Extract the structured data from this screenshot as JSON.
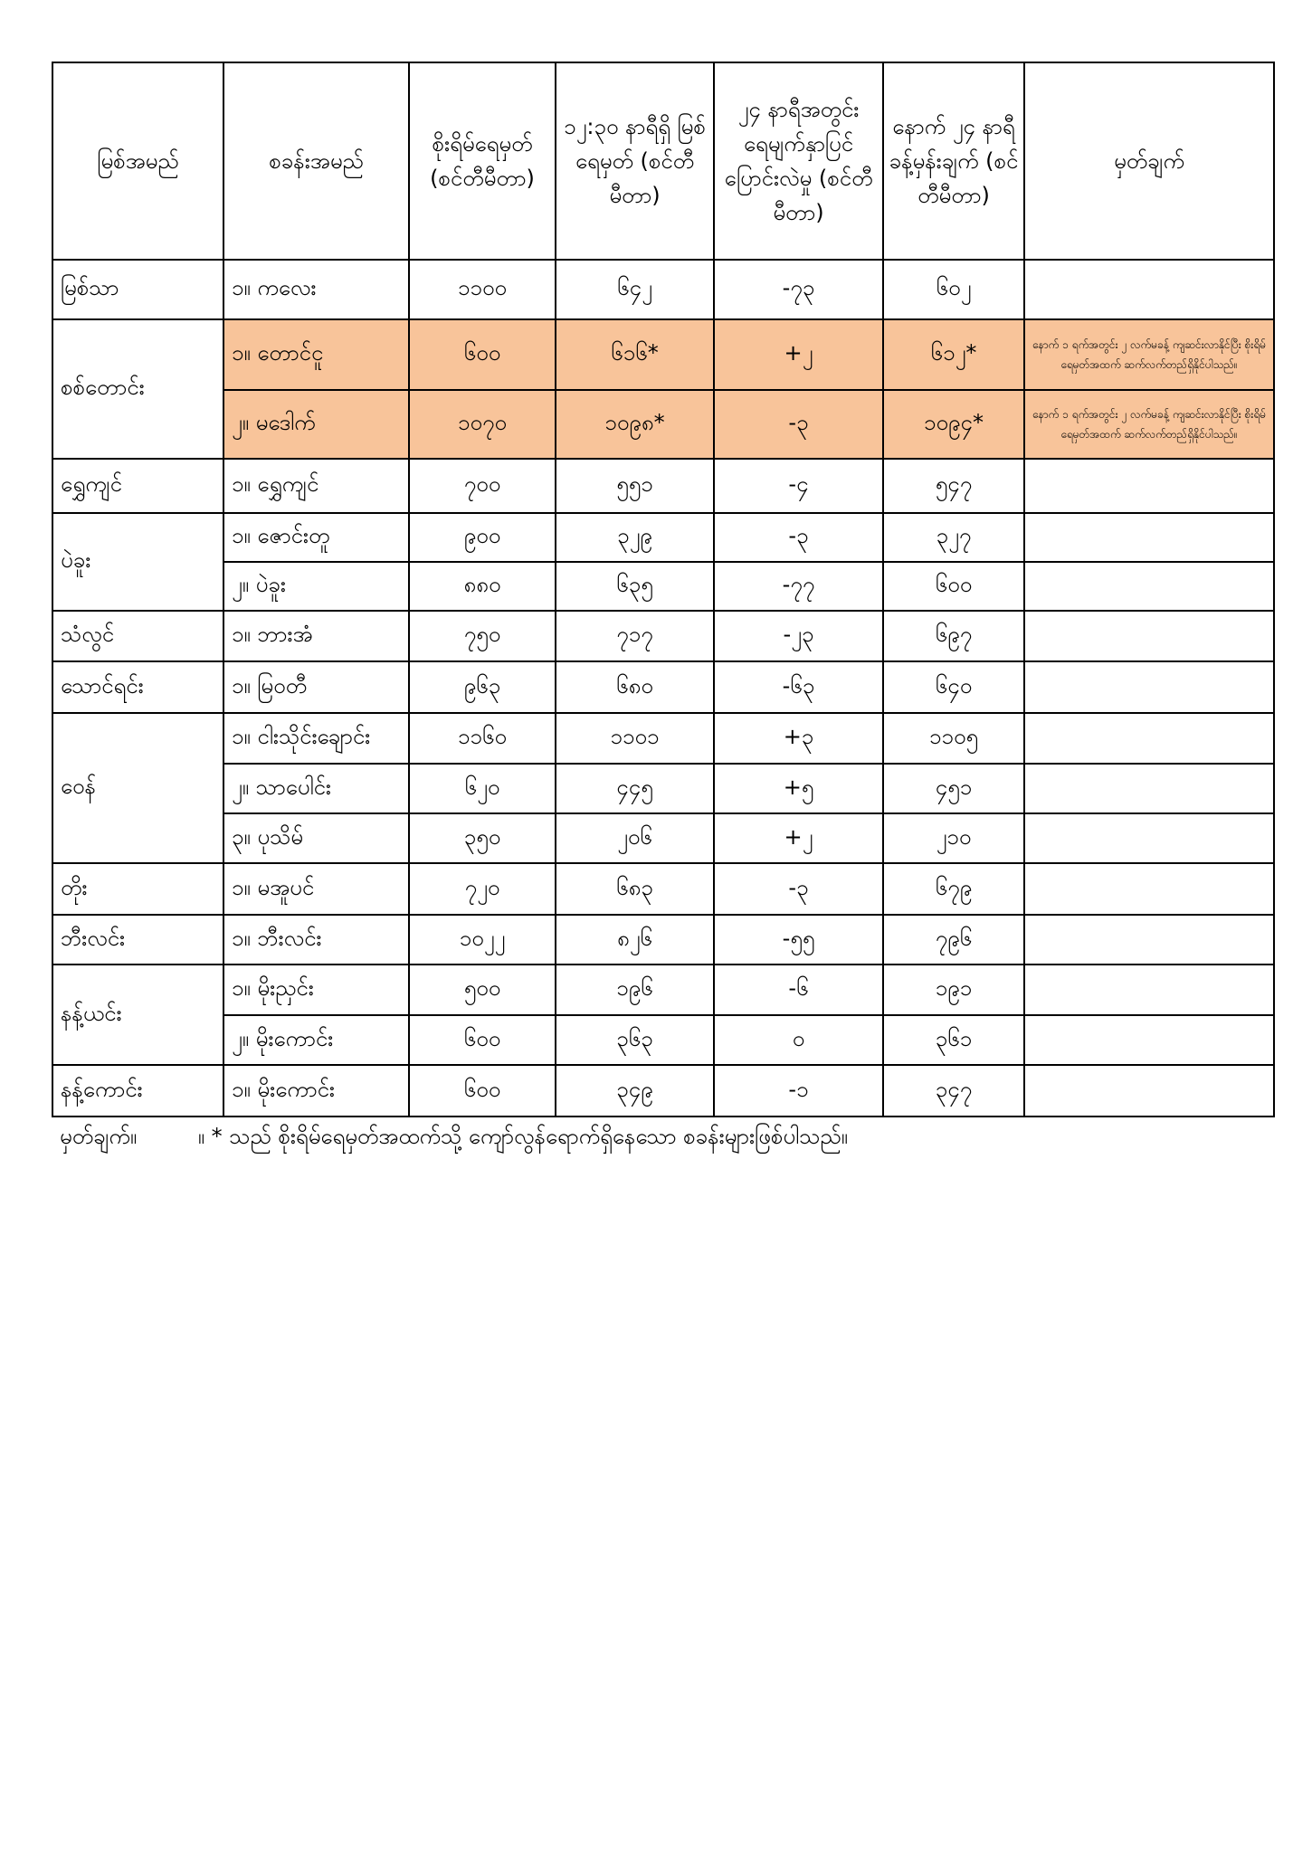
{
  "colors": {
    "highlight": "#f8c49a",
    "border": "#000000"
  },
  "headers": [
    "မြစ်အမည်",
    "စခန်းအမည်",
    "စိုးရိမ်ရေမှတ် (စင်တီမီတာ)",
    "၁၂:၃၀ နာရီရှိ မြစ်ရေမှတ် (စင်တီမီတာ)",
    "၂၄ နာရီအတွင်း ရေမျက်နှာပြင် ပြောင်းလဲမှု (စင်တီမီတာ)",
    "နောက် ၂၄ နာရီ ခန့်မှန်းချက် (စင်တီမီတာ)",
    "မှတ်ချက်"
  ],
  "rivers": [
    "မြစ်သာ",
    "စစ်တောင်း",
    "ရွှေကျင်",
    "ပဲခူး",
    "သံလွင်",
    "သောင်ရင်း",
    "ဝေန်",
    "တိုး",
    "ဘီးလင်း",
    "နန့်ယင်း",
    "နန့်ကောင်း"
  ],
  "remark_text": "နောက် ၁ ရက်အတွင်း ၂ လက်မခန့် ကျဆင်းလာနိုင်ပြီး စိုးရိမ်ရေမှတ်အထက် ဆက်လက်တည်ရှိနိုင်ပါသည်။",
  "rows": [
    {
      "station": "၁။ ကလေး",
      "danger": "၁၁၀၀",
      "level": "၆၄၂",
      "change": "-၇၃",
      "forecast": "၆၀၂"
    },
    {
      "station": "၁။ တောင်ငူ",
      "danger": "၆၀၀",
      "level": "၆၁၆*",
      "change": "+၂",
      "forecast": "၆၁၂*"
    },
    {
      "station": "၂။ မဒေါက်",
      "danger": "၁၀၇၀",
      "level": "၁၀၉၈*",
      "change": "-၃",
      "forecast": "၁၀၉၄*"
    },
    {
      "station": "၁။ ရွှေကျင်",
      "danger": "၇၀၀",
      "level": "၅၅၁",
      "change": "-၄",
      "forecast": "၅၄၇"
    },
    {
      "station": "၁။ ဇောင်းတူ",
      "danger": "၉၀၀",
      "level": "၃၂၉",
      "change": "-၃",
      "forecast": "၃၂၇"
    },
    {
      "station": "၂။ ပဲခူး",
      "danger": "၈၈၀",
      "level": "၆၃၅",
      "change": "-၇၇",
      "forecast": "၆၀၀"
    },
    {
      "station": "၁။ ဘားအံ",
      "danger": "၇၅၀",
      "level": "၇၁၇",
      "change": "-၂၃",
      "forecast": "၆၉၇"
    },
    {
      "station": "၁။ မြဝတီ",
      "danger": "၉၆၃",
      "level": "၆၈၀",
      "change": "-၆၃",
      "forecast": "၆၄၀"
    },
    {
      "station": "၁။ ငါးသိုင်းချောင်း",
      "danger": "၁၁၆၀",
      "level": "၁၁၀၁",
      "change": "+၃",
      "forecast": "၁၁၀၅"
    },
    {
      "station": "၂။ သာပေါင်း",
      "danger": "၆၂၀",
      "level": "၄၄၅",
      "change": "+၅",
      "forecast": "၄၅၁"
    },
    {
      "station": "၃။ ပုသိမ်",
      "danger": "၃၅၀",
      "level": "၂၀၆",
      "change": "+၂",
      "forecast": "၂၁၀"
    },
    {
      "station": "၁။ မအူပင်",
      "danger": "၇၂၀",
      "level": "၆၈၃",
      "change": "-၃",
      "forecast": "၆၇၉"
    },
    {
      "station": "၁။ ဘီးလင်း",
      "danger": "၁၀၂၂",
      "level": "၈၂၆",
      "change": "-၅၅",
      "forecast": "၇၉၆"
    },
    {
      "station": "၁။ မိုးညှင်း",
      "danger": "၅၀၀",
      "level": "၁၉၆",
      "change": "-၆",
      "forecast": "၁၉၁"
    },
    {
      "station": "၂။ မိုးကောင်း",
      "danger": "၆၀၀",
      "level": "၃၆၃",
      "change": "၀",
      "forecast": "၃၆၁"
    },
    {
      "station": "၁။ မိုးကောင်း",
      "danger": "၆၀၀",
      "level": "၃၄၉",
      "change": "-၁",
      "forecast": "၃၄၇"
    }
  ],
  "footnote": {
    "label": "မှတ်ချက်။",
    "text": "။ * သည် စိုးရိမ်ရေမှတ်အထက်သို့ ကျော်လွန်ရောက်ရှိနေသော စခန်းများဖြစ်ပါသည်။"
  }
}
